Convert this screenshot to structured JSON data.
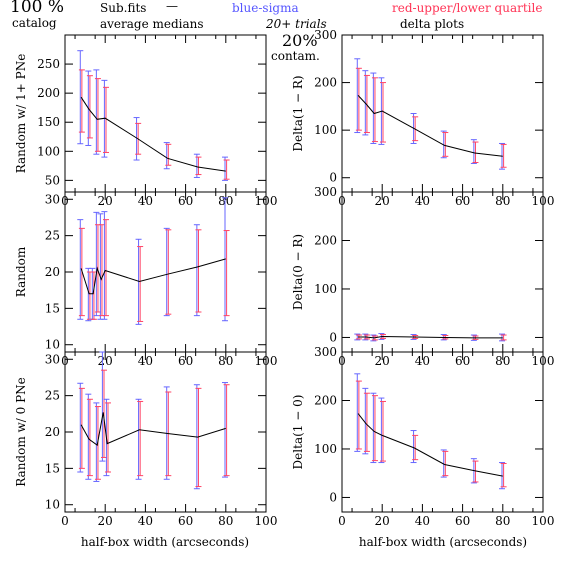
{
  "header": {
    "percent": "100 %",
    "catalog": "catalog",
    "subfits": "Sub.fits",
    "dash": "—",
    "average_medians": "average medians",
    "blue_sigma": "blue-sigma",
    "red_quartile": "red-upper/lower quartile",
    "trials": "20+ trials",
    "contam_pct": "20%",
    "contam": "contam.",
    "delta_plots": "delta plots"
  },
  "colors": {
    "line": "#000000",
    "sigma": "#6666ff",
    "quartile": "#ff4466",
    "frame": "#000000"
  },
  "chart_data": [
    {
      "type": "line",
      "panel": "left-top",
      "ylabel": "Random w/ 1+ PNe",
      "xlim": [
        0,
        100
      ],
      "ylim": [
        30,
        300
      ],
      "xticks": [
        0,
        20,
        40,
        60,
        80,
        100
      ],
      "yticks": [
        50,
        100,
        150,
        200,
        250
      ],
      "x": [
        8,
        12,
        16,
        20,
        36,
        51,
        66,
        80
      ],
      "y": [
        193,
        172,
        155,
        157,
        122,
        88,
        73,
        66
      ],
      "sigma_low": [
        113,
        110,
        95,
        90,
        85,
        70,
        55,
        50
      ],
      "sigma_high": [
        273,
        238,
        240,
        222,
        158,
        115,
        95,
        90
      ],
      "q_low": [
        133,
        123,
        100,
        98,
        95,
        76,
        60,
        52
      ],
      "q_high": [
        240,
        230,
        225,
        210,
        148,
        112,
        90,
        85
      ]
    },
    {
      "type": "line",
      "panel": "right-top",
      "ylabel": "Delta(1 − R)",
      "xlim": [
        0,
        100
      ],
      "ylim": [
        -30,
        300
      ],
      "xticks": [
        0,
        20,
        40,
        60,
        80,
        100
      ],
      "yticks": [
        0,
        100,
        200,
        300
      ],
      "x": [
        8,
        12,
        16,
        20,
        36,
        51,
        66,
        80
      ],
      "y": [
        173,
        155,
        135,
        140,
        103,
        68,
        52,
        45
      ],
      "sigma_low": [
        95,
        90,
        72,
        70,
        72,
        42,
        30,
        18
      ],
      "sigma_high": [
        250,
        225,
        220,
        210,
        135,
        98,
        80,
        72
      ],
      "q_low": [
        100,
        95,
        76,
        75,
        78,
        45,
        32,
        22
      ],
      "q_high": [
        230,
        215,
        210,
        200,
        128,
        95,
        75,
        70
      ]
    },
    {
      "type": "line",
      "panel": "left-middle",
      "ylabel": "Random",
      "xlim": [
        0,
        100
      ],
      "ylim": [
        9,
        31
      ],
      "xticks": [
        0,
        20,
        40,
        60,
        80,
        100
      ],
      "yticks": [
        10,
        15,
        20,
        25,
        30
      ],
      "x": [
        8,
        12,
        14,
        16,
        18,
        20,
        37,
        51,
        66,
        80
      ],
      "y": [
        20.5,
        17,
        17,
        20.5,
        19,
        20.2,
        18.7,
        19.7,
        20.7,
        21.8
      ],
      "sigma_low": [
        13.5,
        13.3,
        13.5,
        14,
        13.5,
        13.5,
        12.8,
        14,
        14,
        13.3
      ],
      "sigma_high": [
        27.2,
        20.5,
        20.5,
        28.2,
        28,
        28.3,
        24.5,
        26,
        26.5,
        30.2
      ],
      "q_low": [
        14,
        13.5,
        13.5,
        14.5,
        14,
        14,
        13.2,
        14.2,
        14.5,
        14
      ],
      "q_high": [
        26,
        20,
        20,
        26.5,
        26.5,
        27.2,
        23.5,
        25.8,
        25.8,
        25.7
      ]
    },
    {
      "type": "line",
      "panel": "right-middle",
      "ylabel": "Delta(0 − R)",
      "xlim": [
        0,
        100
      ],
      "ylim": [
        -30,
        300
      ],
      "xticks": [
        0,
        20,
        40,
        60,
        80,
        100
      ],
      "yticks": [
        0,
        100,
        200,
        300
      ],
      "x": [
        8,
        12,
        16,
        20,
        36,
        51,
        66,
        80
      ],
      "y": [
        1,
        1,
        -1,
        2,
        1,
        0,
        -1,
        -1
      ],
      "sigma_low": [
        -5,
        -5,
        -7,
        -4,
        -4,
        -5,
        -6,
        -7
      ],
      "sigma_high": [
        7,
        7,
        5,
        8,
        6,
        6,
        5,
        7
      ],
      "q_low": [
        -3,
        -3,
        -5,
        -2,
        -2,
        -3,
        -4,
        -5
      ],
      "q_high": [
        5,
        5,
        3,
        6,
        4,
        4,
        3,
        5
      ]
    },
    {
      "type": "line",
      "panel": "left-bottom",
      "ylabel": "Random w/ 0 PNe",
      "xlim": [
        0,
        100
      ],
      "ylim": [
        9,
        31
      ],
      "xticks": [
        0,
        20,
        40,
        60,
        80,
        100
      ],
      "yticks": [
        10,
        15,
        20,
        25,
        30
      ],
      "x": [
        8,
        12,
        16,
        19,
        21,
        37,
        51,
        66,
        80
      ],
      "y": [
        21,
        19,
        18.2,
        22.7,
        18.4,
        20.3,
        19.8,
        19.3,
        20.5
      ],
      "sigma_low": [
        14.5,
        13.5,
        13.2,
        16,
        14,
        13.5,
        13.5,
        12.2,
        13.8
      ],
      "sigma_high": [
        26.7,
        25.2,
        24,
        31,
        24.5,
        24.5,
        26.2,
        26.5,
        26.8
      ],
      "q_low": [
        15,
        14,
        13.5,
        16.5,
        14.5,
        14,
        14,
        12.5,
        14
      ],
      "q_high": [
        26,
        24.5,
        23.5,
        28.5,
        24,
        24.2,
        25.5,
        26,
        26.5
      ]
    },
    {
      "type": "line",
      "panel": "right-bottom",
      "ylabel": "Delta(1 − 0)",
      "xlim": [
        0,
        100
      ],
      "ylim": [
        -30,
        300
      ],
      "xticks": [
        0,
        20,
        40,
        60,
        80,
        100
      ],
      "yticks": [
        0,
        100,
        200,
        300
      ],
      "x": [
        8,
        12,
        16,
        20,
        36,
        51,
        66,
        80
      ],
      "y": [
        173,
        152,
        136,
        128,
        102,
        68,
        55,
        44
      ],
      "sigma_low": [
        95,
        90,
        72,
        72,
        72,
        42,
        30,
        18
      ],
      "sigma_high": [
        255,
        225,
        215,
        205,
        138,
        98,
        80,
        72
      ],
      "q_low": [
        100,
        95,
        76,
        75,
        78,
        45,
        32,
        22
      ],
      "q_high": [
        240,
        215,
        210,
        198,
        128,
        95,
        75,
        70
      ]
    }
  ],
  "xlabel": "half-box width (arcseconds)"
}
